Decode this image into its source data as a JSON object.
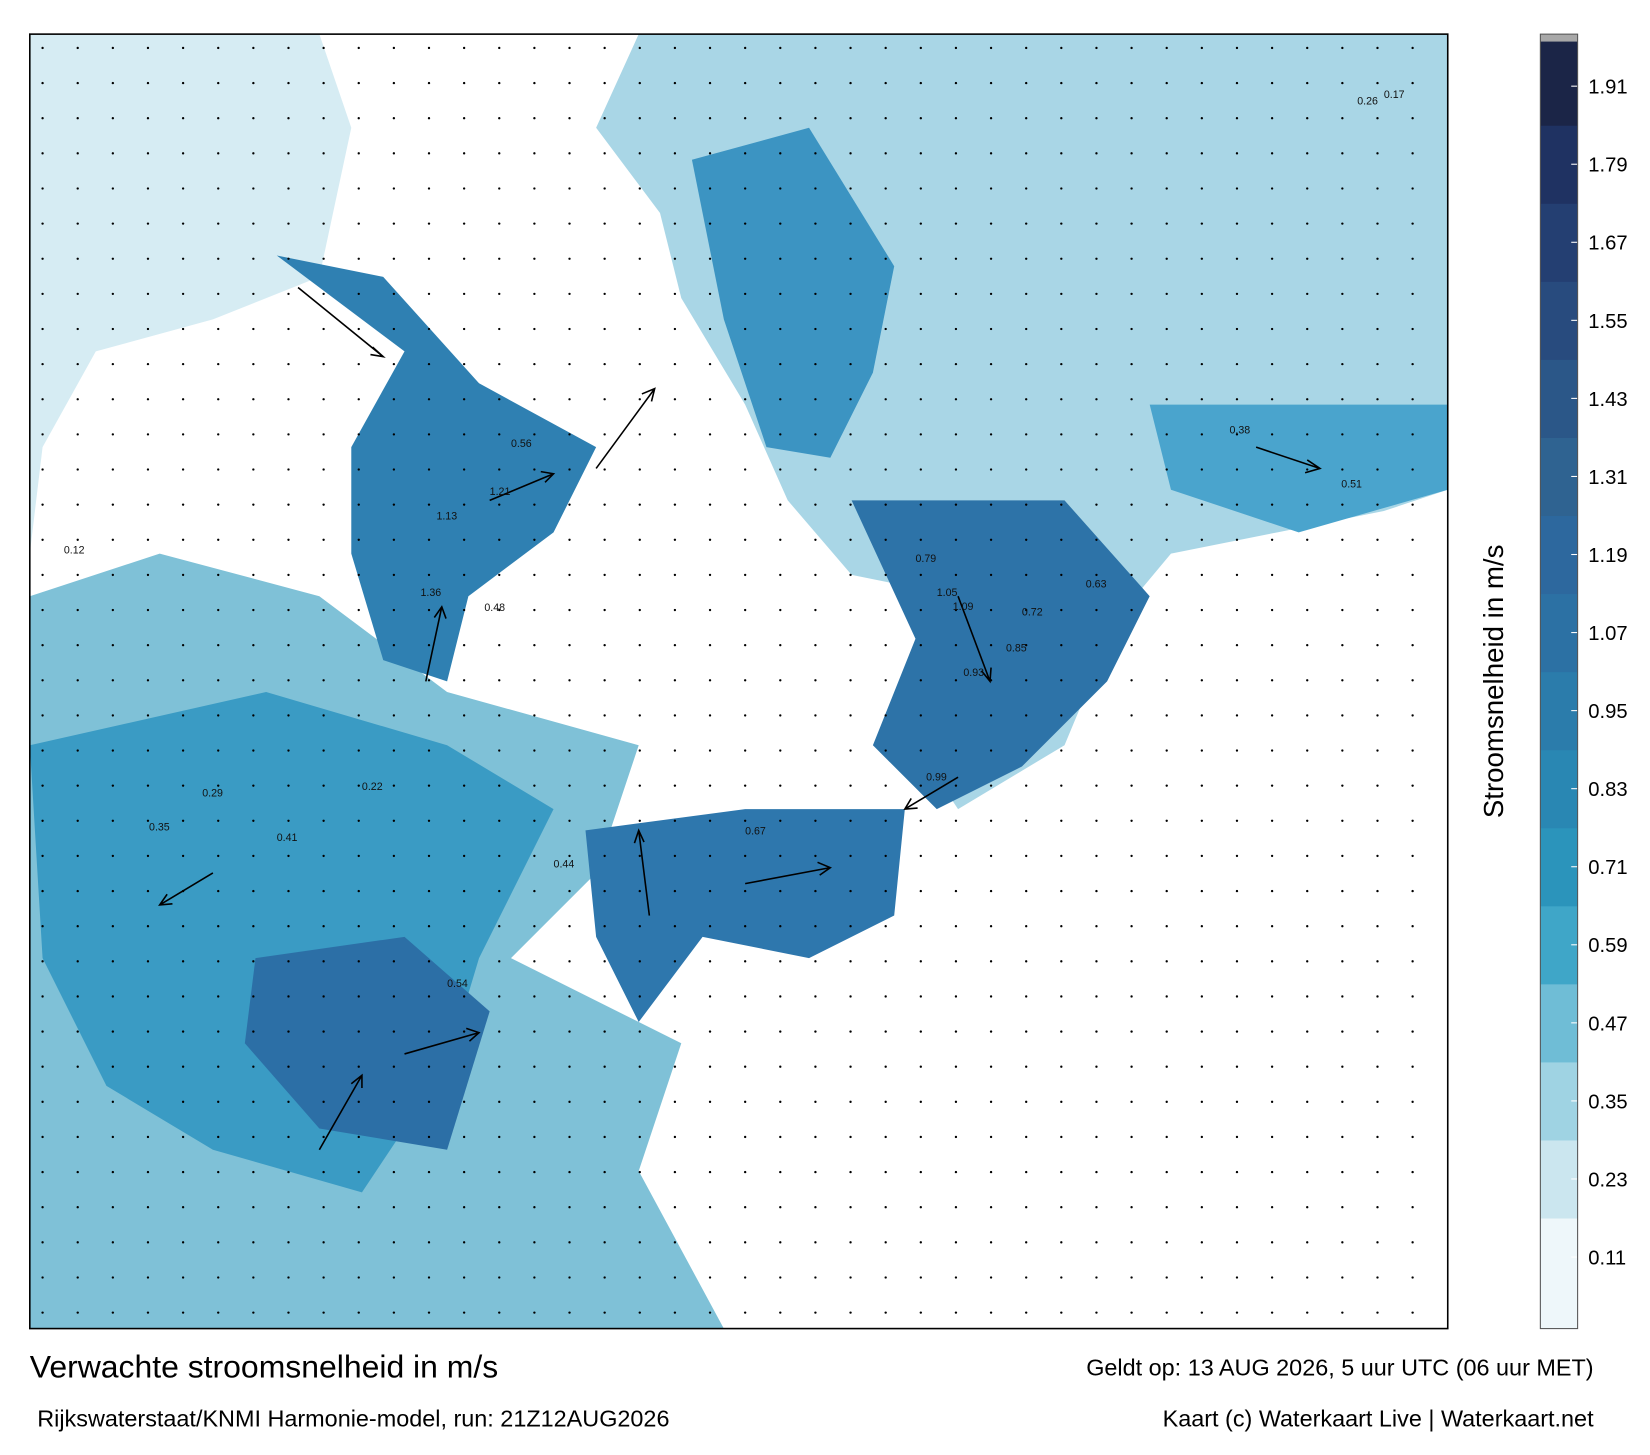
{
  "title": "Verwachte stroomsnelheid in m/s",
  "valid_time": "Geldt op: 13 AUG 2026, 5 uur UTC (06 uur MET)",
  "source": "Rijkswaterstaat/KNMI Harmonie-model, run: 21Z12AUG2026",
  "credit": "Kaart (c) Waterkaart Live | Waterkaart.net",
  "colorbar": {
    "label": "Stroomsnelheid in m/s",
    "clim": [
      0,
      1.99
    ],
    "ticks": [
      0.11,
      0.23,
      0.35,
      0.47,
      0.59,
      0.71,
      0.83,
      0.95,
      1.07,
      1.19,
      1.31,
      1.43,
      1.55,
      1.67,
      1.79,
      1.91
    ],
    "colors": [
      "#eef7fa",
      "#cbe6ef",
      "#9fd3e3",
      "#6fbdd6",
      "#3fa6c8",
      "#2b94bb",
      "#2987b3",
      "#2b7cab",
      "#2c71a4",
      "#2d689e",
      "#2f6391",
      "#2b5788",
      "#284b7e",
      "#243f72",
      "#1f3262",
      "#1b2547"
    ]
  },
  "map_labels": [
    "1.21",
    "1.36",
    "1.13",
    "1.09",
    "0.93",
    "0.85",
    "0.79",
    "0.72",
    "0.56",
    "0.48",
    "0.41",
    "0.35",
    "0.29",
    "0.22",
    "0.17",
    "0.12",
    "0.67",
    "0.99",
    "1.05",
    "0.63",
    "0.51",
    "0.38",
    "0.26",
    "0.54",
    "0.44"
  ]
}
